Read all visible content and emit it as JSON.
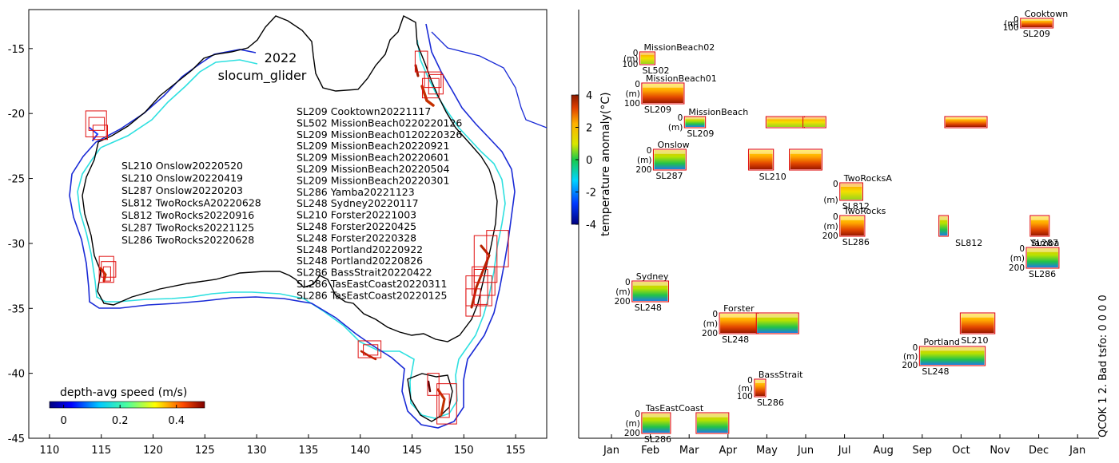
{
  "chart_data": [
    {
      "type": "map",
      "title": "2022",
      "subtitle": "slocum_glider",
      "xlim": [
        108,
        158
      ],
      "ylim": [
        -45,
        -12
      ],
      "x_ticks": [
        110,
        115,
        120,
        125,
        130,
        135,
        140,
        145,
        150,
        155
      ],
      "y_ticks": [
        -15,
        -20,
        -25,
        -30,
        -35,
        -40,
        -45
      ],
      "colorbar": {
        "label": "depth-avg speed (m/s)",
        "range": [
          -0.05,
          0.5
        ],
        "ticks": [
          0,
          0.2,
          0.4
        ],
        "tick_labels": [
          "0",
          "0.2",
          "0.4"
        ]
      },
      "west_missions": [
        "SL210 Onslow20220520",
        "SL210 Onslow20220419",
        "SL287 Onslow20220203",
        "SL812 TwoRocksA20220628",
        "SL812 TwoRocks20220916",
        "SL287 TwoRocks20221125",
        "SL286 TwoRocks20220628"
      ],
      "east_missions": [
        "SL209 Cooktown20221117",
        "SL502 MissionBeach0220220126",
        "SL209 MissionBeach0120220326",
        "SL209 MissionBeach20220921",
        "SL209 MissionBeach20220601",
        "SL209 MissionBeach20220504",
        "SL209 MissionBeach20220301",
        "SL286 Yamba20221123",
        "SL248 Sydney20220117",
        "SL210 Forster20221003",
        "SL248 Forster20220425",
        "SL248 Forster20220328",
        "SL248 Portland20220922",
        "SL248 Portland20220826",
        "SL286 BassStrait20220422",
        "SL286 TasEastCoast20220311",
        "SL286 TasEastCoast20220125"
      ],
      "mission_boxes": [
        {
          "lon": [
            145.3,
            146.5
          ],
          "lat": [
            -16.8,
            -15.2
          ]
        },
        {
          "lon": [
            146.2,
            147.8
          ],
          "lat": [
            -18.0,
            -16.8
          ]
        },
        {
          "lon": [
            146.0,
            147.6
          ],
          "lat": [
            -18.8,
            -17.3
          ]
        },
        {
          "lon": [
            146.6,
            148.0
          ],
          "lat": [
            -18.5,
            -17.0
          ]
        },
        {
          "lon": [
            113.5,
            115.5
          ],
          "lat": [
            -21.8,
            -19.8
          ]
        },
        {
          "lon": [
            113.8,
            115.3
          ],
          "lat": [
            -21.3,
            -20.3
          ]
        },
        {
          "lon": [
            114.2,
            115.6
          ],
          "lat": [
            -22.0,
            -20.9
          ]
        },
        {
          "lon": [
            114.8,
            116.2
          ],
          "lat": [
            -33.0,
            -31.0
          ]
        },
        {
          "lon": [
            115.0,
            116.4
          ],
          "lat": [
            -32.6,
            -31.4
          ]
        },
        {
          "lon": [
            115.2,
            115.9
          ],
          "lat": [
            -32.9,
            -31.8
          ]
        },
        {
          "lon": [
            152.2,
            154.3
          ],
          "lat": [
            -31.8,
            -29.0
          ]
        },
        {
          "lon": [
            151.0,
            153.2
          ],
          "lat": [
            -33.0,
            -29.4
          ]
        },
        {
          "lon": [
            150.8,
            153.0
          ],
          "lat": [
            -34.0,
            -31.8
          ]
        },
        {
          "lon": [
            151.0,
            152.3
          ],
          "lat": [
            -34.7,
            -32.0
          ]
        },
        {
          "lon": [
            150.2,
            152.7
          ],
          "lat": [
            -34.8,
            -32.5
          ]
        },
        {
          "lon": [
            150.2,
            151.6
          ],
          "lat": [
            -35.6,
            -33.5
          ]
        },
        {
          "lon": [
            139.8,
            142.0
          ],
          "lat": [
            -38.8,
            -37.5
          ]
        },
        {
          "lon": [
            140.3,
            141.7
          ],
          "lat": [
            -38.6,
            -37.8
          ]
        },
        {
          "lon": [
            146.5,
            147.6
          ],
          "lat": [
            -41.7,
            -40.0
          ]
        },
        {
          "lon": [
            147.4,
            149.3
          ],
          "lat": [
            -43.9,
            -40.8
          ]
        },
        {
          "lon": [
            147.6,
            148.6
          ],
          "lat": [
            -43.4,
            -41.6
          ]
        }
      ]
    },
    {
      "type": "timeline",
      "xlim_month": [
        0,
        12.2
      ],
      "month_labels": [
        "Jan",
        "Feb",
        "Mar",
        "Apr",
        "May",
        "Jun",
        "Jul",
        "Aug",
        "Sep",
        "Oct",
        "Nov",
        "Dec",
        "Jan"
      ],
      "colorbar": {
        "label": "temperature anomaly(°C)",
        "range": [
          -4,
          4
        ],
        "ticks": [
          -4,
          -2,
          0,
          2,
          4
        ],
        "tick_labels": [
          "-4",
          "-2",
          "0",
          "2",
          "4"
        ]
      },
      "side_note": "QCOK 1  2. Bad tsfo: 0  0  0  0",
      "sites": [
        {
          "name": "Cooktown",
          "glider": "SL209",
          "depth_ticks": [
            "0",
            "(m)",
            "100"
          ],
          "row": 0,
          "first": 10.55
        },
        {
          "name": "MissionBeach02",
          "glider": "SL502",
          "depth_ticks": [
            "0",
            "(m)",
            "100"
          ],
          "row": 1,
          "first": 0.75
        },
        {
          "name": "MissionBeach01",
          "glider": "SL209",
          "depth_ticks": [
            "0",
            "(m)",
            "100"
          ],
          "row": 2,
          "first": 0.8
        },
        {
          "name": "MissionBeach",
          "glider": "SL209",
          "depth_ticks": [
            "0",
            "(m)"
          ],
          "row": 3,
          "first": 1.9
        },
        {
          "name": "Onslow",
          "glider": "SL287",
          "depth_ticks": [
            "0",
            "(m)",
            "200"
          ],
          "row": 4,
          "first": 1.1
        },
        {
          "name": "TwoRocksA",
          "glider": "SL812",
          "depth_ticks": [
            "0",
            "(m)"
          ],
          "row": 5,
          "first": 5.9
        },
        {
          "name": "TwoRocks",
          "glider": "SL286",
          "depth_ticks": [
            "0",
            "(m)",
            "200"
          ],
          "row": 6,
          "first": 5.9
        },
        {
          "name": "Yamba",
          "glider": "SL286",
          "depth_ticks": [
            "0",
            "(m)",
            "200"
          ],
          "row": 7,
          "first": 10.7
        },
        {
          "name": "Sydney",
          "glider": "SL248",
          "depth_ticks": [
            "0",
            "(m)",
            "200"
          ],
          "row": 8,
          "first": 0.55
        },
        {
          "name": "Forster",
          "glider": "SL248",
          "depth_ticks": [
            "0",
            "(m)",
            "200"
          ],
          "row": 9,
          "first": 2.8
        },
        {
          "name": "Portland",
          "glider": "SL248",
          "depth_ticks": [
            "0",
            "(m)",
            "200"
          ],
          "row": 10,
          "first": 7.95
        },
        {
          "name": "BassStrait",
          "glider": "SL286",
          "depth_ticks": [
            "0",
            "(m)",
            "100"
          ],
          "row": 11,
          "first": 3.7
        },
        {
          "name": "TasEastCoast",
          "glider": "SL286",
          "depth_ticks": [
            "0",
            "(m)",
            "200"
          ],
          "row": 12,
          "first": 0.8
        }
      ],
      "extra_labels": [
        {
          "text": "SL210",
          "row": 4,
          "month": 3.8
        },
        {
          "text": "SL812",
          "row": 6,
          "month": 8.85
        },
        {
          "text": "SL287",
          "row": 6,
          "month": 10.8
        },
        {
          "text": "SL210",
          "row": 9,
          "month": 9.0
        }
      ],
      "missions": [
        {
          "site": "Cooktown",
          "start": 10.55,
          "end": 11.35,
          "row": 0,
          "hue": "warm"
        },
        {
          "site": "MissionBeach02",
          "start": 0.75,
          "end": 1.1,
          "row": 1,
          "hue": "mixed"
        },
        {
          "site": "MissionBeach01",
          "start": 0.8,
          "end": 1.85,
          "row": 2,
          "hue": "warm"
        },
        {
          "site": "MissionBeach",
          "start": 1.9,
          "end": 2.4,
          "row": 3,
          "hue": "cool"
        },
        {
          "site": "MissionBeach",
          "start": 4.0,
          "end": 4.95,
          "row": 3,
          "hue": "mixed"
        },
        {
          "site": "MissionBeach",
          "start": 4.95,
          "end": 5.5,
          "row": 3,
          "hue": "mixed"
        },
        {
          "site": "MissionBeach",
          "start": 8.6,
          "end": 9.65,
          "row": 3,
          "hue": "warm"
        },
        {
          "site": "Onslow",
          "start": 1.1,
          "end": 1.9,
          "row": 4,
          "hue": "cool"
        },
        {
          "site": "Onslow",
          "start": 3.55,
          "end": 4.15,
          "row": 4,
          "hue": "warm"
        },
        {
          "site": "Onslow",
          "start": 4.6,
          "end": 5.4,
          "row": 4,
          "hue": "warm"
        },
        {
          "site": "TwoRocksA",
          "start": 5.9,
          "end": 6.45,
          "row": 5,
          "hue": "mixed"
        },
        {
          "site": "TwoRocks",
          "start": 5.9,
          "end": 6.5,
          "row": 6,
          "hue": "warm"
        },
        {
          "site": "TwoRocks",
          "start": 8.45,
          "end": 8.65,
          "row": 6,
          "hue": "cool"
        },
        {
          "site": "TwoRocks",
          "start": 10.8,
          "end": 11.25,
          "row": 6,
          "hue": "warm"
        },
        {
          "site": "Yamba",
          "start": 10.7,
          "end": 11.5,
          "row": 7,
          "hue": "cool"
        },
        {
          "site": "Sydney",
          "start": 0.55,
          "end": 1.45,
          "row": 8,
          "hue": "cool"
        },
        {
          "site": "Forster",
          "start": 2.8,
          "end": 3.75,
          "row": 9,
          "hue": "warm"
        },
        {
          "site": "Forster",
          "start": 3.75,
          "end": 4.8,
          "row": 9,
          "hue": "cool"
        },
        {
          "site": "Forster",
          "start": 9.0,
          "end": 9.85,
          "row": 9,
          "hue": "warm"
        },
        {
          "site": "Portland",
          "start": 7.95,
          "end": 9.6,
          "row": 10,
          "hue": "cool"
        },
        {
          "site": "BassStrait",
          "start": 3.7,
          "end": 3.95,
          "row": 11,
          "hue": "warm"
        },
        {
          "site": "TasEastCoast",
          "start": 0.8,
          "end": 1.5,
          "row": 12,
          "hue": "cool"
        },
        {
          "site": "TasEastCoast",
          "start": 2.2,
          "end": 3.0,
          "row": 12,
          "hue": "cool"
        }
      ]
    }
  ]
}
